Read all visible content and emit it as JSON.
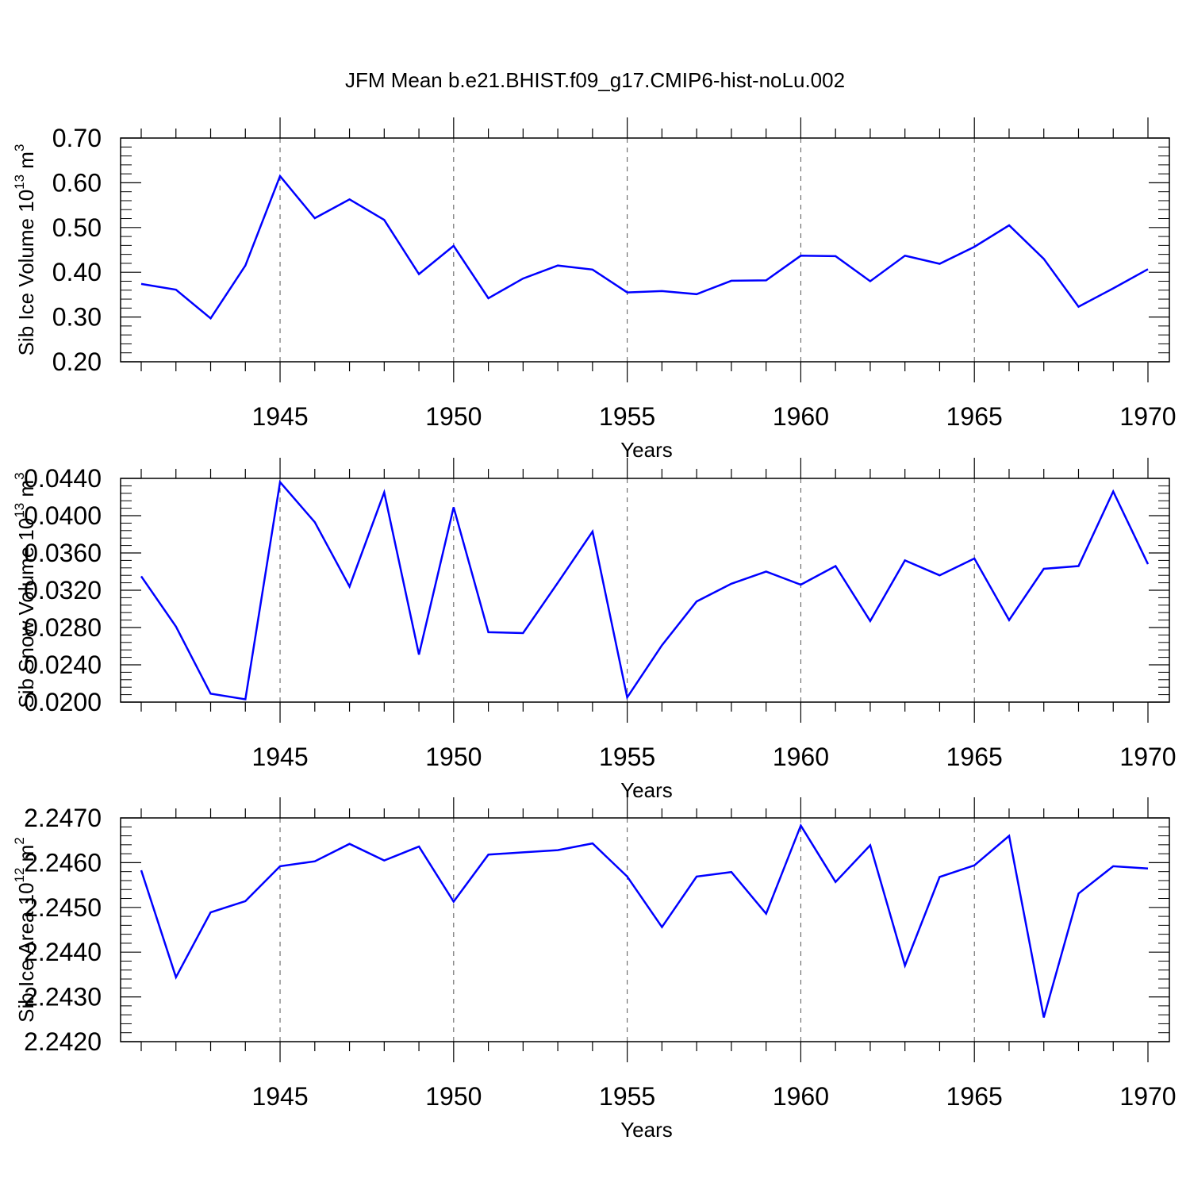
{
  "chart_data": {
    "title": "JFM Mean b.e21.BHIST.f09_g17.CMIP6-hist-noLu.002",
    "colors": {
      "line": "#0000ff",
      "axes": "#000000",
      "grid": "#555555"
    },
    "panels": [
      {
        "type": "line",
        "ylabel_main": "Sib Ice Volume 10",
        "ylabel_exp1": "13",
        "ylabel_unit": " m",
        "ylabel_exp2": "3",
        "xlabel": "Years",
        "ylim": [
          0.2,
          0.7
        ],
        "yticks": [
          0.2,
          0.3,
          0.4,
          0.5,
          0.6,
          0.7
        ],
        "ytick_labels": [
          "0.20",
          "0.30",
          "0.40",
          "0.50",
          "0.60",
          "0.70"
        ],
        "xlim": [
          1941,
          1970
        ],
        "xticks": [
          1945,
          1950,
          1955,
          1960,
          1965,
          1970
        ],
        "xtick_labels": [
          "1945",
          "1950",
          "1955",
          "1960",
          "1965",
          "1970"
        ],
        "grid": "vertical dashed at major x ticks",
        "x": [
          1941,
          1942,
          1943,
          1944,
          1945,
          1946,
          1947,
          1948,
          1949,
          1950,
          1951,
          1952,
          1953,
          1954,
          1955,
          1956,
          1957,
          1958,
          1959,
          1960,
          1961,
          1962,
          1963,
          1964,
          1965,
          1966,
          1967,
          1968,
          1969,
          1970
        ],
        "values": [
          0.374,
          0.361,
          0.297,
          0.415,
          0.615,
          0.521,
          0.563,
          0.517,
          0.396,
          0.459,
          0.342,
          0.386,
          0.415,
          0.406,
          0.355,
          0.358,
          0.351,
          0.381,
          0.382,
          0.437,
          0.436,
          0.38,
          0.437,
          0.419,
          0.457,
          0.505,
          0.43,
          0.323,
          0.364,
          0.407
        ]
      },
      {
        "type": "line",
        "ylabel_main": "Sib Snow Volume 10",
        "ylabel_exp1": "13",
        "ylabel_unit": " m",
        "ylabel_exp2": "3",
        "xlabel": "Years",
        "ylim": [
          0.02,
          0.044
        ],
        "yticks": [
          0.02,
          0.024,
          0.028,
          0.032,
          0.036,
          0.04,
          0.044
        ],
        "ytick_labels": [
          "0.0200",
          "0.0240",
          "0.0280",
          "0.0320",
          "0.0360",
          "0.0400",
          "0.0440"
        ],
        "xlim": [
          1941,
          1970
        ],
        "xticks": [
          1945,
          1950,
          1955,
          1960,
          1965,
          1970
        ],
        "xtick_labels": [
          "1945",
          "1950",
          "1955",
          "1960",
          "1965",
          "1970"
        ],
        "grid": "vertical dashed at major x ticks",
        "x": [
          1941,
          1942,
          1943,
          1944,
          1945,
          1946,
          1947,
          1948,
          1949,
          1950,
          1951,
          1952,
          1953,
          1954,
          1955,
          1956,
          1957,
          1958,
          1959,
          1960,
          1961,
          1962,
          1963,
          1964,
          1965,
          1966,
          1967,
          1968,
          1969,
          1970
        ],
        "values": [
          0.0335,
          0.0281,
          0.0209,
          0.0203,
          0.0436,
          0.0393,
          0.0324,
          0.0425,
          0.0251,
          0.0409,
          0.0275,
          0.0274,
          0.0328,
          0.0383,
          0.0205,
          0.0261,
          0.0308,
          0.0327,
          0.034,
          0.0326,
          0.0346,
          0.0287,
          0.0352,
          0.0336,
          0.0354,
          0.0288,
          0.0343,
          0.0346,
          0.0426,
          0.0348
        ]
      },
      {
        "type": "line",
        "ylabel_main": "Sib Ice Area 10",
        "ylabel_exp1": "12",
        "ylabel_unit": " m",
        "ylabel_exp2": "2",
        "xlabel": "Years",
        "ylim": [
          2.242,
          2.247
        ],
        "yticks": [
          2.242,
          2.243,
          2.244,
          2.245,
          2.246,
          2.247
        ],
        "ytick_labels": [
          "2.2420",
          "2.2430",
          "2.2440",
          "2.2450",
          "2.2460",
          "2.2470"
        ],
        "xlim": [
          1941,
          1970
        ],
        "xticks": [
          1945,
          1950,
          1955,
          1960,
          1965,
          1970
        ],
        "xtick_labels": [
          "1945",
          "1950",
          "1955",
          "1960",
          "1965",
          "1970"
        ],
        "grid": "vertical dashed at major x ticks",
        "x": [
          1941,
          1942,
          1943,
          1944,
          1945,
          1946,
          1947,
          1948,
          1949,
          1950,
          1951,
          1952,
          1953,
          1954,
          1955,
          1956,
          1957,
          1958,
          1959,
          1960,
          1961,
          1962,
          1963,
          1964,
          1965,
          1966,
          1967,
          1968,
          1969,
          1970
        ],
        "values": [
          2.24583,
          2.24344,
          2.24489,
          2.24514,
          2.24592,
          2.24603,
          2.24642,
          2.24605,
          2.24636,
          2.24513,
          2.24618,
          2.24623,
          2.24628,
          2.24643,
          2.24569,
          2.24456,
          2.24569,
          2.24579,
          2.24486,
          2.24683,
          2.24557,
          2.24639,
          2.2437,
          2.24568,
          2.24594,
          2.2466,
          2.24254,
          2.24531,
          2.24592,
          2.24587
        ]
      }
    ]
  }
}
